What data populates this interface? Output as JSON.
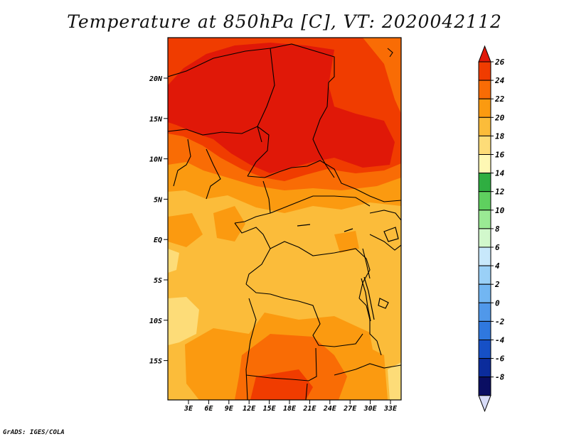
{
  "title": "Temperature at 850hPa [C], VT: 2020042112",
  "credit": "GrADS: IGES/COLA",
  "map": {
    "lat_ticks": [
      "20N",
      "15N",
      "10N",
      "5N",
      "EQ",
      "5S",
      "10S",
      "15S"
    ],
    "lon_ticks": [
      "3E",
      "6E",
      "9E",
      "12E",
      "15E",
      "18E",
      "21E",
      "24E",
      "27E",
      "30E",
      "33E"
    ]
  },
  "colorbar": {
    "levels": [
      "26",
      "24",
      "22",
      "20",
      "18",
      "16",
      "14",
      "12",
      "10",
      "8",
      "6",
      "4",
      "2",
      "0",
      "-2",
      "-4",
      "-6",
      "-8"
    ],
    "colors": [
      "#e01808",
      "#f03c00",
      "#f96c05",
      "#fb9a10",
      "#fbbc3a",
      "#fddc78",
      "#fef8b4",
      "#2fae41",
      "#5fd05f",
      "#9aea94",
      "#d2f8cc",
      "#c8e8fb",
      "#9ad0f7",
      "#72b6f2",
      "#5098ea",
      "#2f78df",
      "#1650c6",
      "#0b2c9c",
      "#0a0e62"
    ],
    "under_color": "#d8dcf8"
  }
}
